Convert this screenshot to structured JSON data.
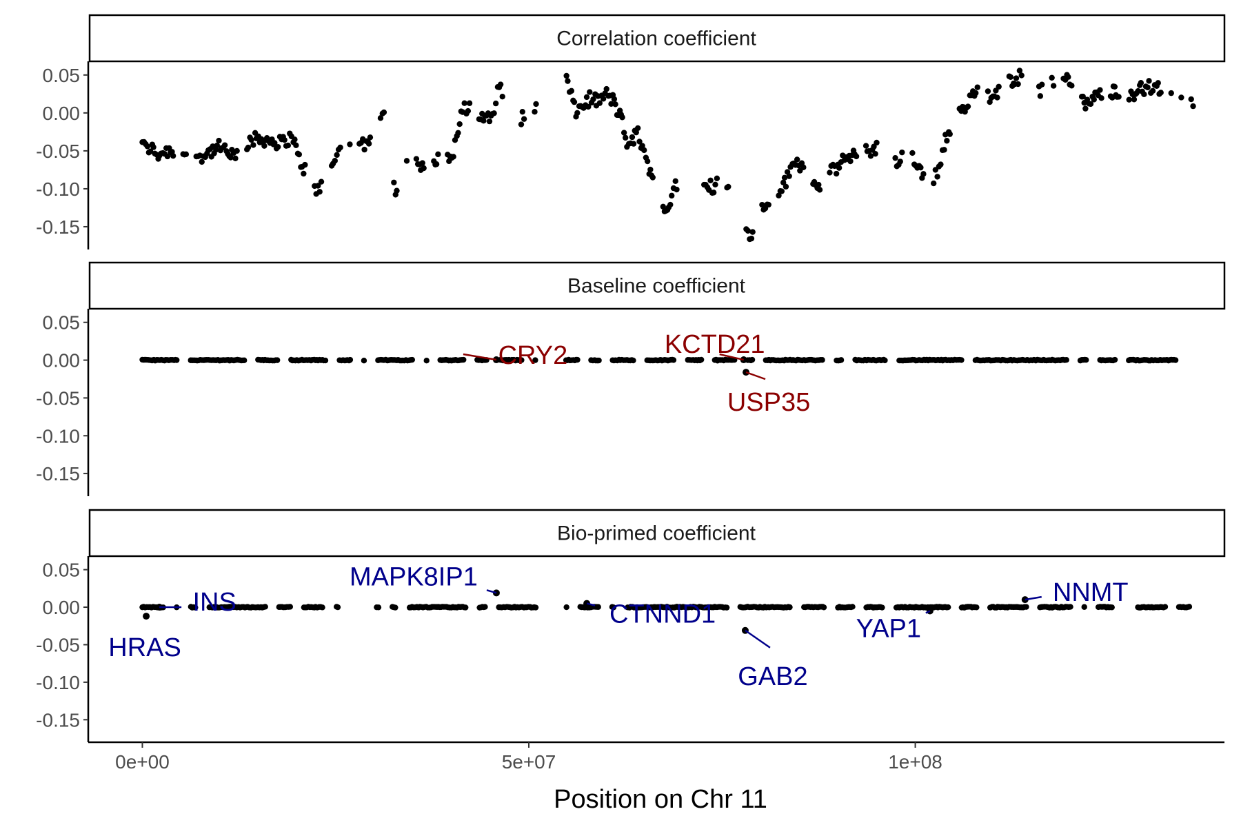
{
  "chart_data": {
    "type": "scatter",
    "xlabel": "Position on Chr 11",
    "xlim": [
      -7000000,
      140000000
    ],
    "ylim": [
      -0.18,
      0.068
    ],
    "x_ticks": [
      0,
      50000000,
      100000000
    ],
    "x_tick_labels": [
      "0e+00",
      "5e+07",
      "1e+08"
    ],
    "y_ticks": [
      0.05,
      0.0,
      -0.05,
      -0.1,
      -0.15
    ],
    "y_tick_labels": [
      "0.05",
      "0.00",
      "-0.05",
      "-0.10",
      "-0.15"
    ],
    "colors": {
      "points": "#000000",
      "baseline_labels": "#8b0000",
      "bioprimed_labels": "#00008b"
    },
    "panels": [
      {
        "strip": "Correlation coefficient",
        "trend_anchors": [
          [
            0,
            -0.035
          ],
          [
            500000,
            -0.05
          ],
          [
            1000000,
            -0.045
          ],
          [
            2000000,
            -0.055
          ],
          [
            3000000,
            -0.05
          ],
          [
            5000000,
            -0.05
          ],
          [
            6000000,
            -0.06
          ],
          [
            8000000,
            -0.055
          ],
          [
            10000000,
            -0.045
          ],
          [
            12000000,
            -0.06
          ],
          [
            14000000,
            -0.035
          ],
          [
            16000000,
            -0.035
          ],
          [
            18000000,
            -0.04
          ],
          [
            19500000,
            -0.03
          ],
          [
            20000000,
            -0.055
          ],
          [
            21000000,
            -0.075
          ],
          [
            22500000,
            -0.1
          ],
          [
            24000000,
            -0.09
          ],
          [
            26000000,
            -0.03
          ],
          [
            27500000,
            -0.05
          ],
          [
            29000000,
            -0.04
          ],
          [
            30000000,
            -0.02
          ],
          [
            31500000,
            0.0
          ],
          [
            32000000,
            -0.09
          ],
          [
            33000000,
            -0.105
          ],
          [
            34000000,
            -0.06
          ],
          [
            35000000,
            -0.04
          ],
          [
            36000000,
            -0.07
          ],
          [
            38000000,
            -0.06
          ],
          [
            40000000,
            -0.06
          ],
          [
            41500000,
            0.005
          ],
          [
            43000000,
            0.008
          ],
          [
            44000000,
            -0.01
          ],
          [
            45500000,
            0.0
          ],
          [
            46000000,
            0.045
          ],
          [
            47000000,
            0.02
          ],
          [
            48000000,
            -0.01
          ],
          [
            50000000,
            -0.005
          ],
          [
            55000000,
            0.045
          ],
          [
            56000000,
            0.0
          ],
          [
            57000000,
            0.01
          ],
          [
            58000000,
            0.02
          ],
          [
            59000000,
            0.015
          ],
          [
            60000000,
            0.025
          ],
          [
            61000000,
            0.015
          ],
          [
            62000000,
            -0.01
          ],
          [
            63000000,
            -0.05
          ],
          [
            64000000,
            -0.02
          ],
          [
            65000000,
            -0.06
          ],
          [
            66000000,
            -0.08
          ],
          [
            67000000,
            -0.11
          ],
          [
            68000000,
            -0.13
          ],
          [
            69000000,
            -0.09
          ],
          [
            70000000,
            -0.11
          ],
          [
            71000000,
            -0.115
          ],
          [
            72000000,
            -0.08
          ],
          [
            73000000,
            -0.09
          ],
          [
            74000000,
            -0.1
          ],
          [
            75000000,
            -0.08
          ],
          [
            76000000,
            -0.095
          ],
          [
            77000000,
            -0.12
          ],
          [
            78000000,
            -0.15
          ],
          [
            79000000,
            -0.165
          ],
          [
            80000000,
            -0.13
          ],
          [
            82000000,
            -0.11
          ],
          [
            83500000,
            -0.085
          ],
          [
            84500000,
            -0.06
          ],
          [
            86000000,
            -0.08
          ],
          [
            88000000,
            -0.1
          ],
          [
            89000000,
            -0.08
          ],
          [
            91000000,
            -0.06
          ],
          [
            93000000,
            -0.055
          ],
          [
            95000000,
            -0.045
          ],
          [
            96000000,
            -0.055
          ],
          [
            98000000,
            -0.07
          ],
          [
            99000000,
            -0.01
          ],
          [
            100000000,
            -0.07
          ],
          [
            101000000,
            -0.08
          ],
          [
            102000000,
            -0.09
          ],
          [
            103000000,
            -0.075
          ],
          [
            104000000,
            -0.03
          ],
          [
            105000000,
            -0.01
          ],
          [
            106000000,
            0.0
          ],
          [
            107000000,
            0.015
          ],
          [
            108000000,
            0.03
          ],
          [
            110000000,
            0.02
          ],
          [
            112000000,
            0.04
          ],
          [
            113000000,
            0.045
          ],
          [
            114000000,
            0.05
          ],
          [
            115000000,
            0.055
          ],
          [
            116000000,
            0.03
          ],
          [
            118000000,
            0.04
          ],
          [
            119000000,
            0.05
          ],
          [
            120000000,
            0.045
          ],
          [
            121000000,
            0.02
          ],
          [
            122000000,
            0.01
          ],
          [
            124000000,
            0.025
          ],
          [
            126000000,
            0.03
          ],
          [
            128000000,
            0.025
          ],
          [
            130000000,
            0.035
          ],
          [
            132000000,
            0.03
          ],
          [
            134000000,
            0.02
          ],
          [
            136000000,
            0.015
          ]
        ],
        "labels": []
      },
      {
        "strip": "Baseline coefficient",
        "labels": [
          {
            "gene": "CRY2",
            "x": 45800000,
            "y": 0.0005
          },
          {
            "gene": "KCTD21",
            "x": 77800000,
            "y": 0.0005
          },
          {
            "gene": "USP35",
            "x": 78100000,
            "y": -0.016
          }
        ]
      },
      {
        "strip": "Bio-primed coefficient",
        "labels": [
          {
            "gene": "INS",
            "x": 2200000,
            "y": 0.0
          },
          {
            "gene": "HRAS",
            "x": 500000,
            "y": -0.012
          },
          {
            "gene": "MAPK8IP1",
            "x": 45800000,
            "y": 0.019
          },
          {
            "gene": "CTNND1",
            "x": 57500000,
            "y": 0.005
          },
          {
            "gene": "GAB2",
            "x": 78000000,
            "y": -0.031
          },
          {
            "gene": "YAP1",
            "x": 101900000,
            "y": -0.005
          },
          {
            "gene": "NNMT",
            "x": 114200000,
            "y": 0.01
          }
        ]
      }
    ],
    "gaps": [
      [
        51000000,
        54800000
      ]
    ]
  }
}
